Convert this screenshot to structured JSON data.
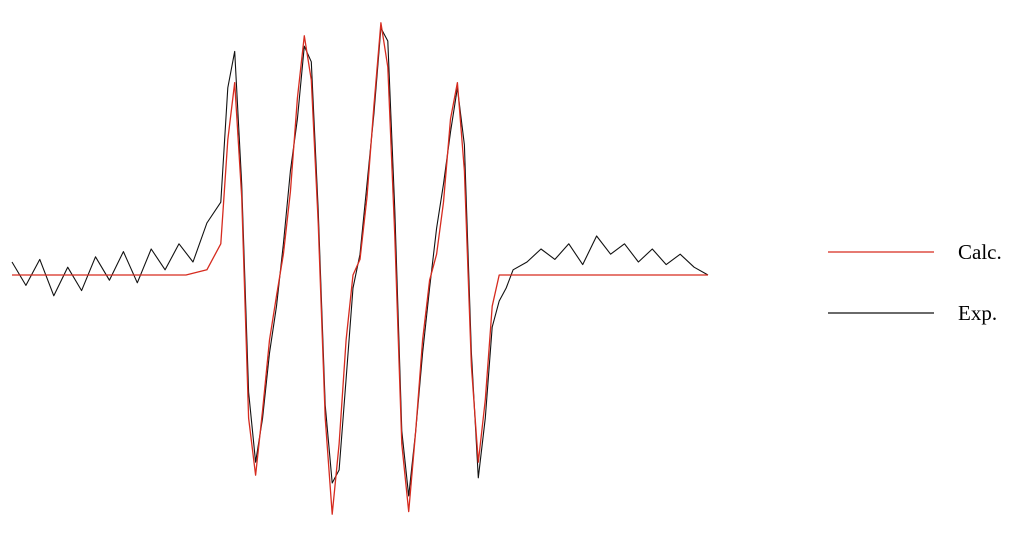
{
  "chart_data": {
    "type": "line",
    "title": "",
    "xlabel": "",
    "ylabel": "",
    "axes_visible": false,
    "grid": false,
    "legend_position": "right",
    "xlim": [
      0,
      100
    ],
    "ylim": [
      -1.0,
      1.0
    ],
    "colors": {
      "calc": "#d62b1f",
      "exp": "#111111"
    },
    "series": [
      {
        "name": "Calc.",
        "key": "calc",
        "x": [
          0,
          5,
          10,
          15,
          20,
          25,
          28,
          30,
          31,
          32,
          33,
          34,
          35,
          36,
          37,
          38,
          39,
          40,
          41,
          42,
          43,
          44,
          45,
          46,
          47,
          48,
          49,
          50,
          51,
          52,
          53,
          54,
          55,
          56,
          57,
          58,
          59,
          60,
          61,
          62,
          63,
          64,
          65,
          66,
          67,
          68,
          69,
          70,
          71,
          72,
          75,
          80,
          85,
          90,
          95,
          100
        ],
        "y": [
          0,
          0,
          0,
          0,
          0,
          0,
          0.02,
          0.12,
          0.52,
          0.74,
          0.3,
          -0.55,
          -0.77,
          -0.52,
          -0.25,
          -0.08,
          0.08,
          0.32,
          0.68,
          0.92,
          0.75,
          0.2,
          -0.55,
          -0.92,
          -0.65,
          -0.25,
          0,
          0.06,
          0.3,
          0.65,
          0.97,
          0.8,
          0.15,
          -0.65,
          -0.91,
          -0.6,
          -0.25,
          -0.02,
          0.08,
          0.28,
          0.6,
          0.74,
          0.4,
          -0.35,
          -0.72,
          -0.48,
          -0.12,
          0,
          0,
          0,
          0,
          0,
          0,
          0,
          0,
          0
        ]
      },
      {
        "name": "Exp.",
        "key": "exp",
        "x": [
          0,
          2,
          4,
          6,
          8,
          10,
          12,
          14,
          16,
          18,
          20,
          22,
          24,
          26,
          28,
          30,
          31,
          32,
          33,
          34,
          35,
          36,
          37,
          38,
          39,
          40,
          41,
          42,
          43,
          44,
          45,
          46,
          47,
          48,
          49,
          50,
          51,
          52,
          53,
          54,
          55,
          56,
          57,
          58,
          59,
          60,
          61,
          62,
          63,
          64,
          65,
          66,
          67,
          68,
          69,
          70,
          71,
          72,
          74,
          76,
          78,
          80,
          82,
          84,
          86,
          88,
          90,
          92,
          94,
          96,
          98,
          100
        ],
        "y": [
          0.05,
          -0.04,
          0.06,
          -0.08,
          0.03,
          -0.06,
          0.07,
          -0.02,
          0.09,
          -0.03,
          0.1,
          0.02,
          0.12,
          0.05,
          0.2,
          0.28,
          0.72,
          0.86,
          0.35,
          -0.45,
          -0.72,
          -0.55,
          -0.3,
          -0.12,
          0.12,
          0.4,
          0.6,
          0.88,
          0.82,
          0.25,
          -0.5,
          -0.8,
          -0.75,
          -0.4,
          -0.05,
          0.08,
          0.35,
          0.62,
          0.95,
          0.9,
          0.25,
          -0.6,
          -0.85,
          -0.6,
          -0.3,
          -0.05,
          0.18,
          0.35,
          0.55,
          0.72,
          0.5,
          -0.3,
          -0.78,
          -0.55,
          -0.2,
          -0.1,
          -0.05,
          0.02,
          0.05,
          0.1,
          0.06,
          0.12,
          0.04,
          0.15,
          0.08,
          0.12,
          0.05,
          0.1,
          0.04,
          0.08,
          0.03,
          0.0
        ]
      }
    ]
  }
}
